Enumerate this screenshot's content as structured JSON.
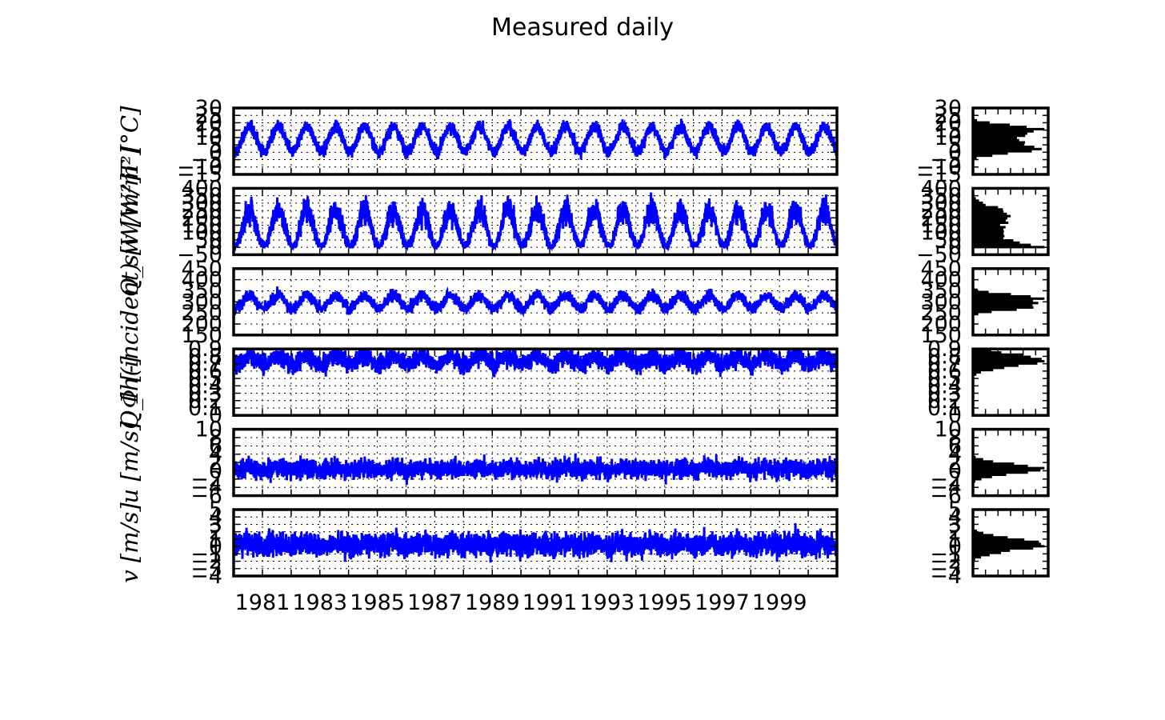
{
  "chart_data": {
    "type": "line",
    "title": "Measured daily",
    "x_range": [
      "1980-01-01",
      "2000-12-31"
    ],
    "x_ticks": [
      "1981",
      "1983",
      "1985",
      "1987",
      "1989",
      "1991",
      "1993",
      "1995",
      "1997",
      "1999"
    ],
    "grid": true,
    "line_color": "#0000ff",
    "hist_color": "#000000",
    "panels": [
      {
        "key": "t",
        "ylabel": "T [°C]",
        "ylim": [
          -15,
          30
        ],
        "yticks": [
          "30",
          "25",
          "20",
          "15",
          "10",
          "5",
          "0",
          "−5",
          "−10",
          "−15"
        ],
        "mean": 9,
        "annual_amplitude": 8.5,
        "daily_noise": 3,
        "histogram_peak": 10
      },
      {
        "key": "qsw",
        "ylabel": "Q_sw [W/m²]",
        "ylim": [
          -50,
          400
        ],
        "yticks": [
          "400",
          "350",
          "300",
          "250",
          "200",
          "150",
          "100",
          "50",
          "0",
          "−50"
        ],
        "mean": 130,
        "annual_amplitude": 125,
        "daily_noise": 45,
        "histogram_peak": 0
      },
      {
        "key": "qlw",
        "ylabel": "Q_lh(incident) [W/m²]",
        "ylim": [
          150,
          450
        ],
        "yticks": [
          "450",
          "400",
          "350",
          "300",
          "250",
          "200",
          "150"
        ],
        "mean": 300,
        "annual_amplitude": 30,
        "daily_noise": 18,
        "histogram_peak": 300
      },
      {
        "key": "phi",
        "ylabel": "Φ [-]",
        "ylim": [
          0,
          0.9
        ],
        "yticks": [
          "0.9",
          "0.8",
          "0.7",
          "0.6",
          "0.5",
          "0.4",
          "0.3",
          "0.2",
          "0.1",
          "0"
        ],
        "mean": 0.75,
        "annual_amplitude": 0.06,
        "daily_noise": 0.09,
        "histogram_peak": 0.8
      },
      {
        "key": "u",
        "ylabel": "u [m/s]",
        "ylim": [
          -6,
          10
        ],
        "yticks": [
          "10",
          "8",
          "6",
          "4",
          "2",
          "0",
          "−2",
          "−4",
          "−6"
        ],
        "mean": 0.5,
        "annual_amplitude": 0.3,
        "daily_noise": 1.6,
        "histogram_peak": 0
      },
      {
        "key": "v",
        "ylabel": "v [m/s]",
        "ylim": [
          -4,
          5
        ],
        "yticks": [
          "5",
          "4",
          "3",
          "2",
          "1",
          "0",
          "−1",
          "−2",
          "−3",
          "−4"
        ],
        "mean": 0.3,
        "annual_amplitude": 0.2,
        "daily_noise": 1.1,
        "histogram_peak": 0
      }
    ]
  }
}
